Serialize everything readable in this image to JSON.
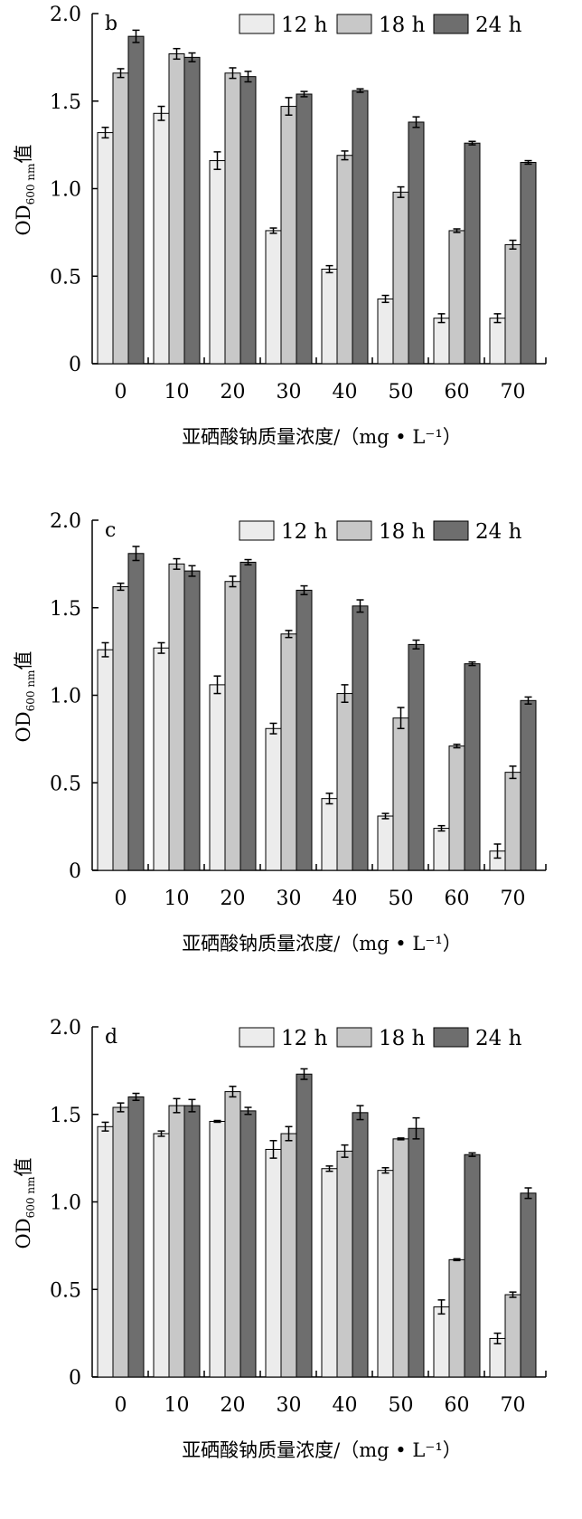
{
  "colors": {
    "s12": "#ececec",
    "s18": "#c8c8c8",
    "s24": "#6e6e6e",
    "stroke": "#000000"
  },
  "xlabel": "亚硒酸钠质量浓度/（mg • L⁻¹）",
  "ylabel_main": "OD",
  "ylabel_sub": "600 nm",
  "ylabel_suffix": "值",
  "chart_data": [
    {
      "type": "bar",
      "panel_label": "b",
      "categories": [
        "0",
        "10",
        "20",
        "30",
        "40",
        "50",
        "60",
        "70"
      ],
      "ylim": [
        0,
        2.0
      ],
      "yticks": [
        "0",
        "0.5",
        "1.0",
        "1.5",
        "2.0"
      ],
      "legend_position": "top-right",
      "series": [
        {
          "name": "12 h",
          "values": [
            1.32,
            1.43,
            1.16,
            0.76,
            0.54,
            0.37,
            0.26,
            0.26
          ],
          "errors": [
            0.03,
            0.04,
            0.05,
            0.015,
            0.02,
            0.02,
            0.025,
            0.025
          ]
        },
        {
          "name": "18 h",
          "values": [
            1.66,
            1.77,
            1.66,
            1.47,
            1.19,
            0.98,
            0.76,
            0.68
          ],
          "errors": [
            0.025,
            0.03,
            0.03,
            0.05,
            0.025,
            0.03,
            0.01,
            0.025
          ]
        },
        {
          "name": "24 h",
          "values": [
            1.87,
            1.75,
            1.64,
            1.54,
            1.56,
            1.38,
            1.26,
            1.15
          ],
          "errors": [
            0.035,
            0.025,
            0.03,
            0.015,
            0.01,
            0.03,
            0.01,
            0.01
          ]
        }
      ]
    },
    {
      "type": "bar",
      "panel_label": "c",
      "categories": [
        "0",
        "10",
        "20",
        "30",
        "40",
        "50",
        "60",
        "70"
      ],
      "ylim": [
        0,
        2.0
      ],
      "yticks": [
        "0",
        "0.5",
        "1.0",
        "1.5",
        "2.0"
      ],
      "legend_position": "top-right",
      "series": [
        {
          "name": "12 h",
          "values": [
            1.26,
            1.27,
            1.06,
            0.81,
            0.41,
            0.31,
            0.24,
            0.11
          ],
          "errors": [
            0.04,
            0.03,
            0.05,
            0.03,
            0.03,
            0.015,
            0.015,
            0.04
          ]
        },
        {
          "name": "18 h",
          "values": [
            1.62,
            1.75,
            1.65,
            1.35,
            1.01,
            0.87,
            0.71,
            0.56
          ],
          "errors": [
            0.02,
            0.03,
            0.03,
            0.02,
            0.05,
            0.06,
            0.01,
            0.035
          ]
        },
        {
          "name": "24 h",
          "values": [
            1.81,
            1.71,
            1.76,
            1.6,
            1.51,
            1.29,
            1.18,
            0.97
          ],
          "errors": [
            0.04,
            0.03,
            0.015,
            0.025,
            0.035,
            0.025,
            0.01,
            0.02
          ]
        }
      ]
    },
    {
      "type": "bar",
      "panel_label": "d",
      "categories": [
        "0",
        "10",
        "20",
        "30",
        "40",
        "50",
        "60",
        "70"
      ],
      "ylim": [
        0,
        2.0
      ],
      "yticks": [
        "0",
        "0.5",
        "1.0",
        "1.5",
        "2.0"
      ],
      "legend_position": "top-right",
      "series": [
        {
          "name": "12 h",
          "values": [
            1.43,
            1.39,
            1.46,
            1.3,
            1.19,
            1.18,
            0.4,
            0.22
          ],
          "errors": [
            0.025,
            0.015,
            0.005,
            0.05,
            0.015,
            0.015,
            0.04,
            0.03
          ]
        },
        {
          "name": "18 h",
          "values": [
            1.54,
            1.55,
            1.63,
            1.39,
            1.29,
            1.36,
            0.67,
            0.47
          ],
          "errors": [
            0.025,
            0.04,
            0.03,
            0.04,
            0.035,
            0.005,
            0.005,
            0.015
          ]
        },
        {
          "name": "24 h",
          "values": [
            1.6,
            1.55,
            1.52,
            1.73,
            1.51,
            1.42,
            1.27,
            1.05
          ],
          "errors": [
            0.02,
            0.035,
            0.02,
            0.03,
            0.04,
            0.06,
            0.01,
            0.03
          ]
        }
      ]
    }
  ]
}
